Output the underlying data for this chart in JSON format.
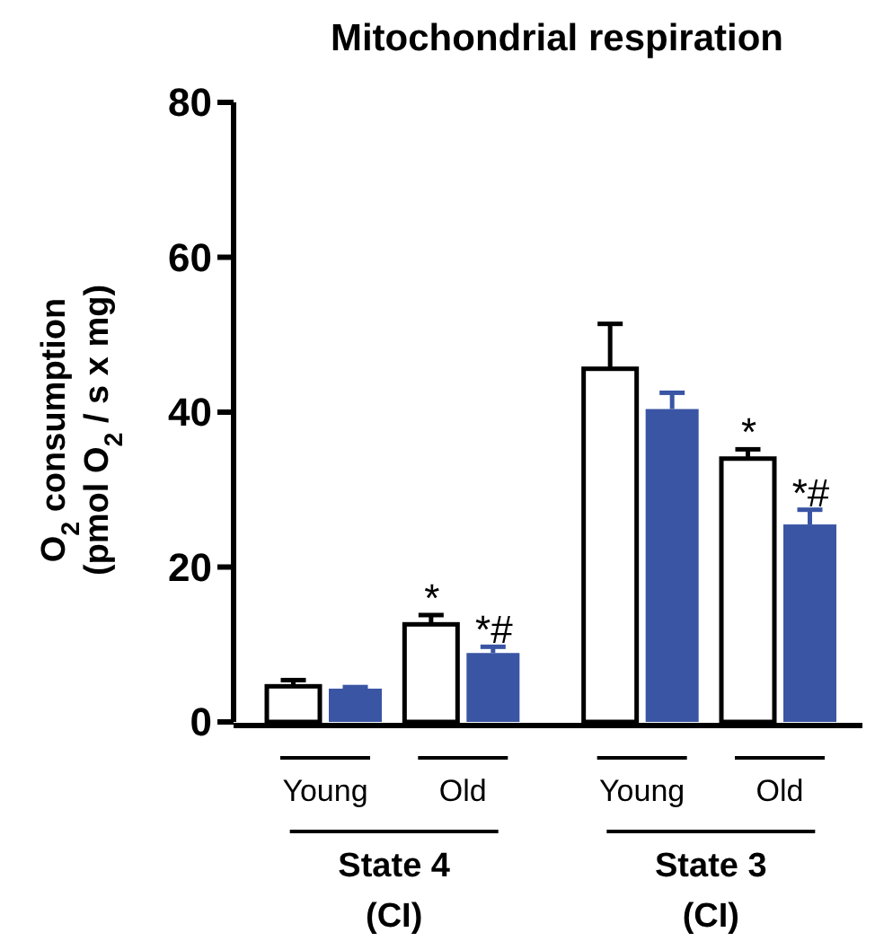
{
  "chart_data": {
    "type": "bar",
    "title": "Mitochondrial respiration",
    "ylabel": "O$_{2}$ consumption (pmol O$_{2}$ / s x mg)",
    "categories": [
      "Young",
      "Old",
      "Young",
      "Old"
    ],
    "series": [
      {
        "color": "#ffffff",
        "values": [
          4.6,
          12.6,
          45.6,
          34.0
        ],
        "errors": [
          0.8,
          1.2,
          5.8,
          1.2
        ]
      },
      {
        "color": "#3a55a4",
        "values": [
          4.3,
          8.9,
          40.4,
          25.5
        ],
        "errors": [
          0.2,
          0.8,
          2.1,
          1.9
        ]
      }
    ],
    "ylim": [
      0,
      80
    ],
    "yticks": [
      0,
      20,
      40,
      60,
      80
    ],
    "grid": false,
    "annotations": [
      "State 4 (CI)",
      "State 3 (CI)",
      "*",
      "*#",
      "*",
      "*#"
    ]
  }
}
